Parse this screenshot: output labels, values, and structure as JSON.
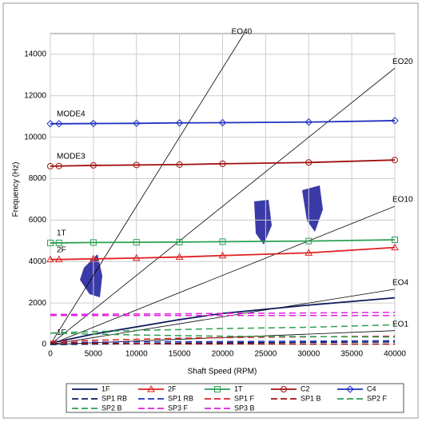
{
  "chart_data": {
    "type": "line",
    "y_label": "Frequency (Hz)",
    "x_label": "Shaft Speed (RPM)",
    "xlim": [
      0,
      40000
    ],
    "ylim": [
      0,
      15000
    ],
    "xticks": [
      0,
      5000,
      10000,
      15000,
      20000,
      25000,
      30000,
      35000,
      40000
    ],
    "yticks": [
      0,
      2000,
      4000,
      6000,
      8000,
      10000,
      12000,
      14000
    ],
    "grid": true,
    "x": [
      0,
      1000,
      5000,
      10000,
      15000,
      20000,
      30000,
      40000
    ],
    "series": [
      {
        "name": "1F",
        "label": "1F",
        "color": "#0a1a5c",
        "dash": false,
        "marker": "none",
        "values": [
          100,
          150,
          500,
          850,
          1200,
          1500,
          1900,
          2250
        ]
      },
      {
        "name": "2F",
        "label": "2F",
        "color": "#e02020",
        "dash": false,
        "marker": "triangle",
        "values": [
          4100,
          4100,
          4130,
          4170,
          4220,
          4290,
          4420,
          4680
        ]
      },
      {
        "name": "1T",
        "label": "1T",
        "color": "#2aa050",
        "dash": false,
        "marker": "square",
        "values": [
          4900,
          4900,
          4920,
          4930,
          4940,
          4960,
          4990,
          5050
        ]
      },
      {
        "name": "C2",
        "label": "MODE3",
        "color": "#a01010",
        "dash": false,
        "marker": "circle",
        "values": [
          8600,
          8610,
          8640,
          8660,
          8680,
          8720,
          8780,
          8900
        ]
      },
      {
        "name": "C4",
        "label": "MODE4",
        "color": "#2030c0",
        "dash": false,
        "marker": "diamond",
        "values": [
          10650,
          10650,
          10660,
          10670,
          10690,
          10700,
          10730,
          10800
        ]
      },
      {
        "name": "SP1 RB",
        "color": "#0a1a5c",
        "dash": true,
        "marker": "none",
        "values": [
          0,
          0,
          20,
          40,
          60,
          80,
          100,
          120
        ]
      },
      {
        "name": "SP1 RB",
        "color": "#2030c0",
        "dash": true,
        "marker": "none",
        "values": [
          100,
          100,
          110,
          120,
          130,
          140,
          160,
          180
        ]
      },
      {
        "name": "SP1 F",
        "color": "#e02020",
        "dash": true,
        "marker": "none",
        "values": [
          150,
          160,
          200,
          250,
          300,
          330,
          370,
          400
        ]
      },
      {
        "name": "SP1 B",
        "color": "#a01010",
        "dash": true,
        "marker": "none",
        "values": [
          80,
          80,
          60,
          40,
          30,
          30,
          20,
          20
        ]
      },
      {
        "name": "SP2 F",
        "color": "#2aa050",
        "dash": true,
        "marker": "none",
        "values": [
          550,
          570,
          620,
          680,
          720,
          770,
          830,
          950
        ]
      },
      {
        "name": "SP2 B",
        "color": "#2aa050",
        "dash": true,
        "marker": "none",
        "values": [
          550,
          540,
          500,
          460,
          430,
          400,
          380,
          360
        ]
      },
      {
        "name": "SP3 F",
        "color": "#e020e0",
        "dash": true,
        "marker": "none",
        "values": [
          1450,
          1450,
          1460,
          1470,
          1480,
          1500,
          1520,
          1550
        ]
      },
      {
        "name": "SP3 B",
        "color": "#e020e0",
        "dash": true,
        "marker": "none",
        "values": [
          1400,
          1400,
          1400,
          1400,
          1400,
          1400,
          1400,
          1400
        ]
      }
    ],
    "engine_orders": [
      {
        "label": "EO40",
        "x": [
          0,
          22500
        ],
        "values": [
          0,
          15000
        ]
      },
      {
        "label": "EO20",
        "x": [
          0,
          40000
        ],
        "values": [
          0,
          13333
        ]
      },
      {
        "label": "EO10",
        "x": [
          0,
          40000
        ],
        "values": [
          0,
          6667
        ]
      },
      {
        "label": "EO4",
        "x": [
          0,
          40000
        ],
        "values": [
          0,
          2667
        ]
      },
      {
        "label": "EO1",
        "x": [
          0,
          40000
        ],
        "values": [
          0,
          667
        ]
      }
    ]
  }
}
